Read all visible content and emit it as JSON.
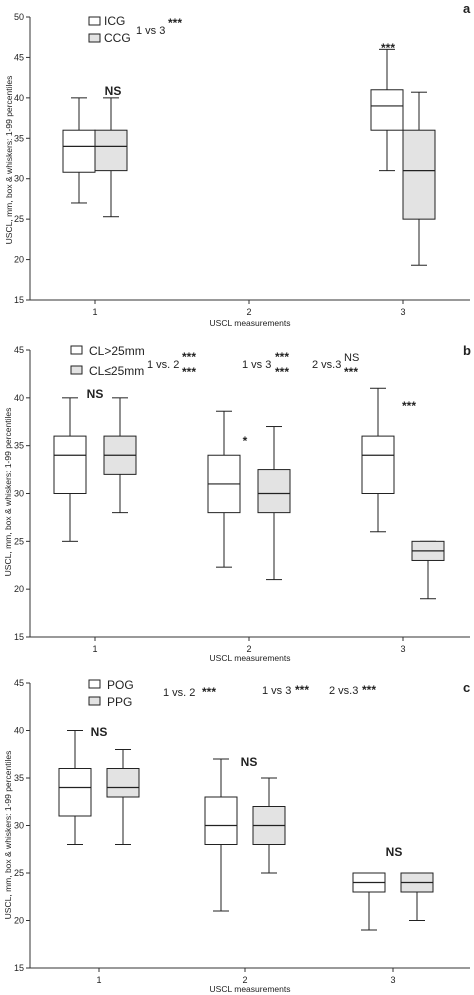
{
  "chart_data": [
    {
      "type": "box",
      "panel_letter": "a",
      "xlabel": "USCL measurements",
      "ylabel": "USCL, mm, box & whiskers: 1-99 percentiles",
      "ylim": [
        15,
        50
      ],
      "yticks": [
        "15",
        "20",
        "25",
        "30",
        "35",
        "40",
        "45",
        "50"
      ],
      "categories": [
        "1",
        "2",
        "3"
      ],
      "legend_placement": "top-left",
      "series": [
        {
          "name": "ICG",
          "fill": "#ffffff",
          "boxes": [
            {
              "x": 1,
              "whislo": 27,
              "q1": 30.8,
              "med": 34,
              "q3": 36,
              "whishi": 40
            },
            {
              "x": 3,
              "whislo": 31,
              "q1": 36,
              "med": 39,
              "q3": 41,
              "whishi": 46
            }
          ]
        },
        {
          "name": "CCG",
          "fill": "#e3e3e3",
          "boxes": [
            {
              "x": 1,
              "whislo": 25.3,
              "q1": 31,
              "med": 34,
              "q3": 36,
              "whishi": 40
            },
            {
              "x": 3,
              "whislo": 19.3,
              "q1": 25,
              "med": 31,
              "q3": 36,
              "whishi": 40.7
            }
          ]
        }
      ],
      "annotations": [
        {
          "text": "1 vs 3",
          "stars": "***"
        },
        {
          "text": "NS",
          "x": 1,
          "y": 41.5
        },
        {
          "text": "***",
          "x": 3,
          "y": 45.5
        }
      ]
    },
    {
      "type": "box",
      "panel_letter": "b",
      "xlabel": "USCL measurements",
      "ylabel": "USCL, mm, box & whiskers: 1-99 percentiles",
      "ylim": [
        15,
        45
      ],
      "yticks": [
        "15",
        "20",
        "25",
        "30",
        "35",
        "40",
        "45"
      ],
      "categories": [
        "1",
        "2",
        "3"
      ],
      "legend_placement": "top-left",
      "series": [
        {
          "name": "CL>25mm",
          "fill": "#ffffff",
          "boxes": [
            {
              "x": 1,
              "whislo": 25,
              "q1": 30,
              "med": 34,
              "q3": 36,
              "whishi": 40
            },
            {
              "x": 2,
              "whislo": 22.3,
              "q1": 28,
              "med": 31,
              "q3": 34,
              "whishi": 38.6
            },
            {
              "x": 3,
              "whislo": 26,
              "q1": 30,
              "med": 34,
              "q3": 36,
              "whishi": 41
            }
          ]
        },
        {
          "name": "CL≤25mm",
          "fill": "#e3e3e3",
          "boxes": [
            {
              "x": 1,
              "whislo": 28,
              "q1": 32,
              "med": 34,
              "q3": 36,
              "whishi": 40
            },
            {
              "x": 2,
              "whislo": 21,
              "q1": 28,
              "med": 30,
              "q3": 32.5,
              "whishi": 37
            },
            {
              "x": 3,
              "whislo": 19,
              "q1": 23,
              "med": 24,
              "q3": 25,
              "whishi": 25
            }
          ]
        }
      ],
      "annotations": [
        {
          "text": "1 vs. 2",
          "stars": "***"
        },
        {
          "text": "1 vs 3",
          "stars": "***"
        },
        {
          "text": "2 vs.3",
          "stars": "NS / ***"
        },
        {
          "text": "NS",
          "x": 1,
          "y": 40.5
        },
        {
          "text": "*",
          "x": 2,
          "y": 38.3
        },
        {
          "text": "***",
          "x": 3,
          "y": 36.8
        }
      ]
    },
    {
      "type": "box",
      "panel_letter": "c",
      "xlabel": "USCL measurements",
      "ylabel": "USCL, mm, box & whiskers: 1-99 percentiles",
      "ylim": [
        15,
        45
      ],
      "yticks": [
        "15",
        "20",
        "25",
        "30",
        "35",
        "40",
        "45"
      ],
      "categories": [
        "1",
        "2",
        "3"
      ],
      "legend_placement": "top-left",
      "series": [
        {
          "name": "POG",
          "fill": "#ffffff",
          "boxes": [
            {
              "x": 1,
              "whislo": 28,
              "q1": 31,
              "med": 34,
              "q3": 36,
              "whishi": 40
            },
            {
              "x": 2,
              "whislo": 21,
              "q1": 28,
              "med": 30,
              "q3": 33,
              "whishi": 37
            },
            {
              "x": 3,
              "whislo": 19,
              "q1": 23,
              "med": 24,
              "q3": 25,
              "whishi": 25
            }
          ]
        },
        {
          "name": "PPG",
          "fill": "#e3e3e3",
          "boxes": [
            {
              "x": 1,
              "whislo": 28,
              "q1": 33,
              "med": 34,
              "q3": 36,
              "whishi": 38
            },
            {
              "x": 2,
              "whislo": 25,
              "q1": 28,
              "med": 30,
              "q3": 32,
              "whishi": 35
            },
            {
              "x": 3,
              "whislo": 20,
              "q1": 23,
              "med": 24,
              "q3": 25,
              "whishi": 25
            }
          ]
        }
      ],
      "annotations": [
        {
          "text": "1 vs. 2",
          "stars": "***"
        },
        {
          "text": "1 vs 3",
          "stars": "***"
        },
        {
          "text": "2 vs.3",
          "stars": "***"
        },
        {
          "text": "NS",
          "x": 1,
          "y": 40.3
        },
        {
          "text": "NS",
          "x": 2,
          "y": 36.6
        },
        {
          "text": "NS",
          "x": 3,
          "y": 26.2
        }
      ]
    }
  ]
}
